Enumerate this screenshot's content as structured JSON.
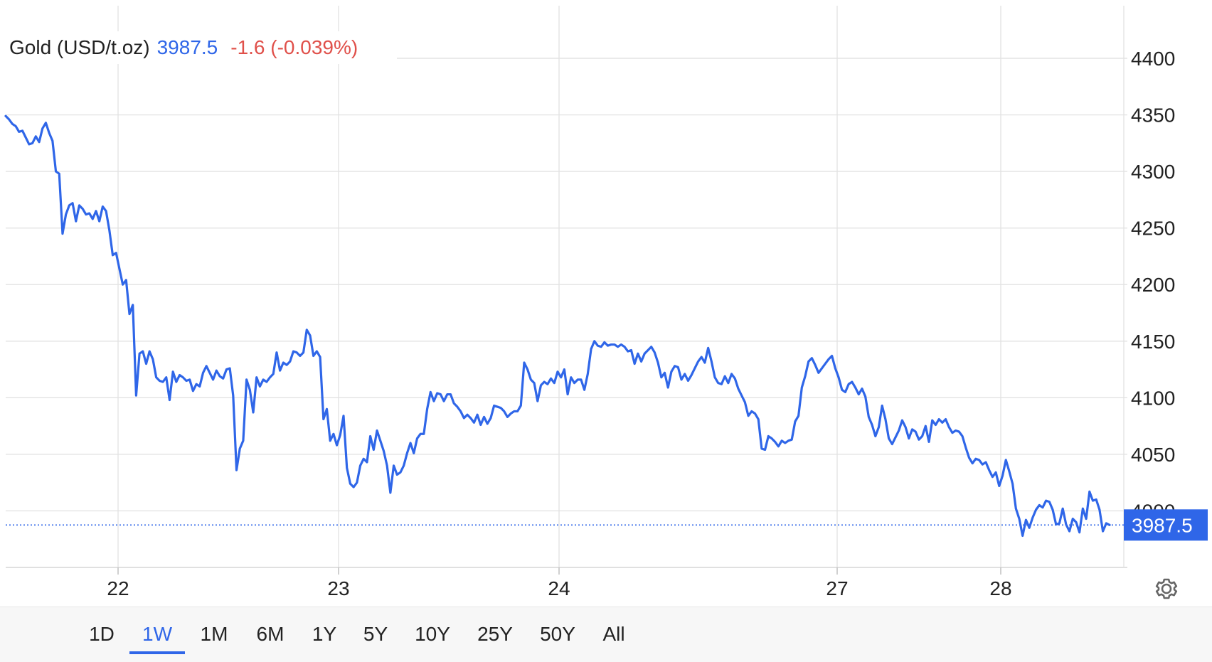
{
  "header": {
    "name": "Gold (USD/t.oz)",
    "price": "3987.5",
    "change": "-1.6 (-0.039%)"
  },
  "colors": {
    "line": "#2f66e8",
    "price_tag": "#2f66e8",
    "change_negative": "#e0504a",
    "grid": "#e3e3e3"
  },
  "icons": {
    "settings": "gear-icon"
  },
  "ranges": {
    "items": [
      "1D",
      "1W",
      "1M",
      "6M",
      "1Y",
      "5Y",
      "10Y",
      "25Y",
      "50Y",
      "All"
    ],
    "active": "1W"
  },
  "chart_data": {
    "type": "line",
    "series": [
      {
        "values": [
          4349,
          4346,
          4342,
          4340,
          4335,
          4336,
          4330,
          4324,
          4325,
          4331,
          4326,
          4338,
          4343,
          4334,
          4327,
          4300,
          4298,
          4245,
          4262,
          4270,
          4272,
          4256,
          4270,
          4267,
          4262,
          4263,
          4258,
          4265,
          4256,
          4269,
          4265,
          4248,
          4226,
          4228,
          4214,
          4200,
          4204,
          4174,
          4182,
          4102,
          4139,
          4141,
          4130,
          4141,
          4134,
          4118,
          4115,
          4114,
          4118,
          4098,
          4123,
          4114,
          4120,
          4118,
          4115,
          4116,
          4106,
          4112,
          4110,
          4122,
          4128,
          4122,
          4116,
          4124,
          4119,
          4117,
          4125,
          4126,
          4102,
          4036,
          4055,
          4062,
          4116,
          4107,
          4087,
          4118,
          4110,
          4116,
          4114,
          4118,
          4121,
          4140,
          4124,
          4131,
          4129,
          4132,
          4141,
          4140,
          4137,
          4140,
          4160,
          4155,
          4137,
          4141,
          4136,
          4081,
          4090,
          4062,
          4068,
          4058,
          4067,
          4084,
          4038,
          4024,
          4021,
          4025,
          4040,
          4046,
          4043,
          4066,
          4054,
          4071,
          4062,
          4053,
          4040,
          4016,
          4040,
          4032,
          4034,
          4040,
          4051,
          4060,
          4051,
          4064,
          4068,
          4068,
          4090,
          4105,
          4097,
          4104,
          4103,
          4097,
          4103,
          4103,
          4095,
          4092,
          4088,
          4082,
          4085,
          4082,
          4078,
          4085,
          4076,
          4083,
          4077,
          4082,
          4093,
          4092,
          4091,
          4088,
          4083,
          4086,
          4088,
          4088,
          4093,
          4131,
          4125,
          4116,
          4113,
          4097,
          4111,
          4114,
          4112,
          4117,
          4113,
          4123,
          4118,
          4125,
          4103,
          4118,
          4113,
          4116,
          4116,
          4107,
          4121,
          4143,
          4150,
          4146,
          4145,
          4149,
          4146,
          4147,
          4147,
          4145,
          4147,
          4145,
          4141,
          4142,
          4130,
          4139,
          4132,
          4139,
          4142,
          4145,
          4140,
          4131,
          4118,
          4122,
          4109,
          4123,
          4128,
          4127,
          4116,
          4121,
          4115,
          4120,
          4126,
          4132,
          4136,
          4131,
          4144,
          4132,
          4118,
          4113,
          4112,
          4119,
          4113,
          4121,
          4117,
          4108,
          4102,
          4096,
          4084,
          4088,
          4086,
          4081,
          4055,
          4054,
          4066,
          4064,
          4061,
          4057,
          4062,
          4060,
          4062,
          4063,
          4079,
          4084,
          4109,
          4119,
          4132,
          4135,
          4129,
          4122,
          4126,
          4130,
          4134,
          4137,
          4126,
          4118,
          4107,
          4105,
          4112,
          4114,
          4109,
          4103,
          4108,
          4101,
          4083,
          4076,
          4066,
          4074,
          4093,
          4081,
          4064,
          4059,
          4065,
          4071,
          4080,
          4074,
          4064,
          4072,
          4070,
          4063,
          4066,
          4075,
          4061,
          4080,
          4076,
          4081,
          4078,
          4081,
          4074,
          4069,
          4071,
          4070,
          4066,
          4056,
          4047,
          4042,
          4046,
          4045,
          4041,
          4043,
          4036,
          4030,
          4034,
          4022,
          4031,
          4045,
          4035,
          4024,
          4002,
          3993,
          3978,
          3992,
          3985,
          3994,
          4001,
          4005,
          4003,
          4009,
          4008,
          4001,
          3988,
          3989,
          4002,
          3988,
          3982,
          3993,
          3990,
          3981,
          4002,
          3993,
          4017,
          4009,
          4010,
          4001,
          3982,
          3989,
          3987.5
        ]
      }
    ],
    "x_tick_labels": [
      "22",
      "23",
      "24",
      "27",
      "28"
    ],
    "y_ticks": [
      4000,
      4050,
      4100,
      4150,
      4200,
      4250,
      4300,
      4350,
      4400
    ],
    "ylim": [
      3950,
      4400
    ],
    "last_value": 3987.5,
    "last_value_label": "3987.5",
    "grid": true
  }
}
